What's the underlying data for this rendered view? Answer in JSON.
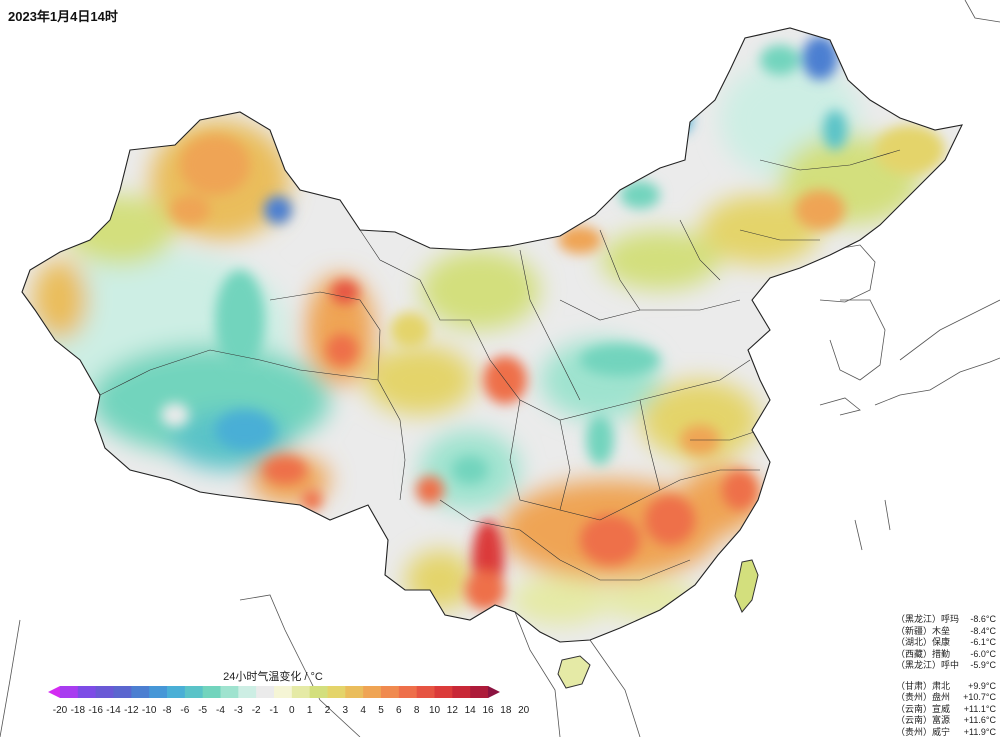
{
  "header": {
    "datetime": "2023年1月4日14时"
  },
  "legend": {
    "title": "24小时气温变化 / °C",
    "colors": [
      "#d32bf2",
      "#a83cf0",
      "#7d4ce6",
      "#6a59d6",
      "#5b66cf",
      "#4c7fd1",
      "#4697d7",
      "#4aafd6",
      "#5ac3c8",
      "#72d4bd",
      "#9fe3cf",
      "#cdeee4",
      "#ebebeb",
      "#f5f5d5",
      "#e5eaa6",
      "#d3df7d",
      "#e4d46a",
      "#eabd5c",
      "#efa454",
      "#f08a4f",
      "#ee6f4a",
      "#e65442",
      "#db3b3a",
      "#c82837",
      "#ad1b3a",
      "#8b1240"
    ],
    "ticks": [
      "-20",
      "-18",
      "-16",
      "-14",
      "-12",
      "-10",
      "-8",
      "-6",
      "-5",
      "-4",
      "-3",
      "-2",
      "-1",
      "0",
      "1",
      "2",
      "3",
      "4",
      "5",
      "6",
      "8",
      "10",
      "12",
      "14",
      "16",
      "18",
      "20"
    ]
  },
  "stats": {
    "drops": [
      {
        "province": "（黑龙江）",
        "station": "呼玛",
        "value": "-8.6°C"
      },
      {
        "province": "（新疆）",
        "station": "木垒",
        "value": "-8.4°C"
      },
      {
        "province": "（湖北）",
        "station": "保康",
        "value": "-6.1°C"
      },
      {
        "province": "（西藏）",
        "station": "措勤",
        "value": "-6.0°C"
      },
      {
        "province": "（黑龙江）",
        "station": "呼中",
        "value": "-5.9°C"
      }
    ],
    "rises": [
      {
        "province": "（甘肃）",
        "station": "肃北",
        "value": "+9.9°C"
      },
      {
        "province": "（贵州）",
        "station": "盘州",
        "value": "+10.7°C"
      },
      {
        "province": "（云南）",
        "station": "宣威",
        "value": "+11.1°C"
      },
      {
        "province": "（云南）",
        "station": "富源",
        "value": "+11.6°C"
      },
      {
        "province": "（贵州）",
        "station": "威宁",
        "value": "+11.9°C"
      }
    ]
  },
  "map": {
    "regions": [
      {
        "name": "xinjiang-north",
        "color": "#e4d46a"
      },
      {
        "name": "xinjiang-cold",
        "color": "#72d4bd"
      },
      {
        "name": "tibet-cold",
        "color": "#5ac3c8"
      },
      {
        "name": "northeast-cold",
        "color": "#4c7fd1"
      },
      {
        "name": "southwest-hot",
        "color": "#db3b3a"
      }
    ]
  }
}
